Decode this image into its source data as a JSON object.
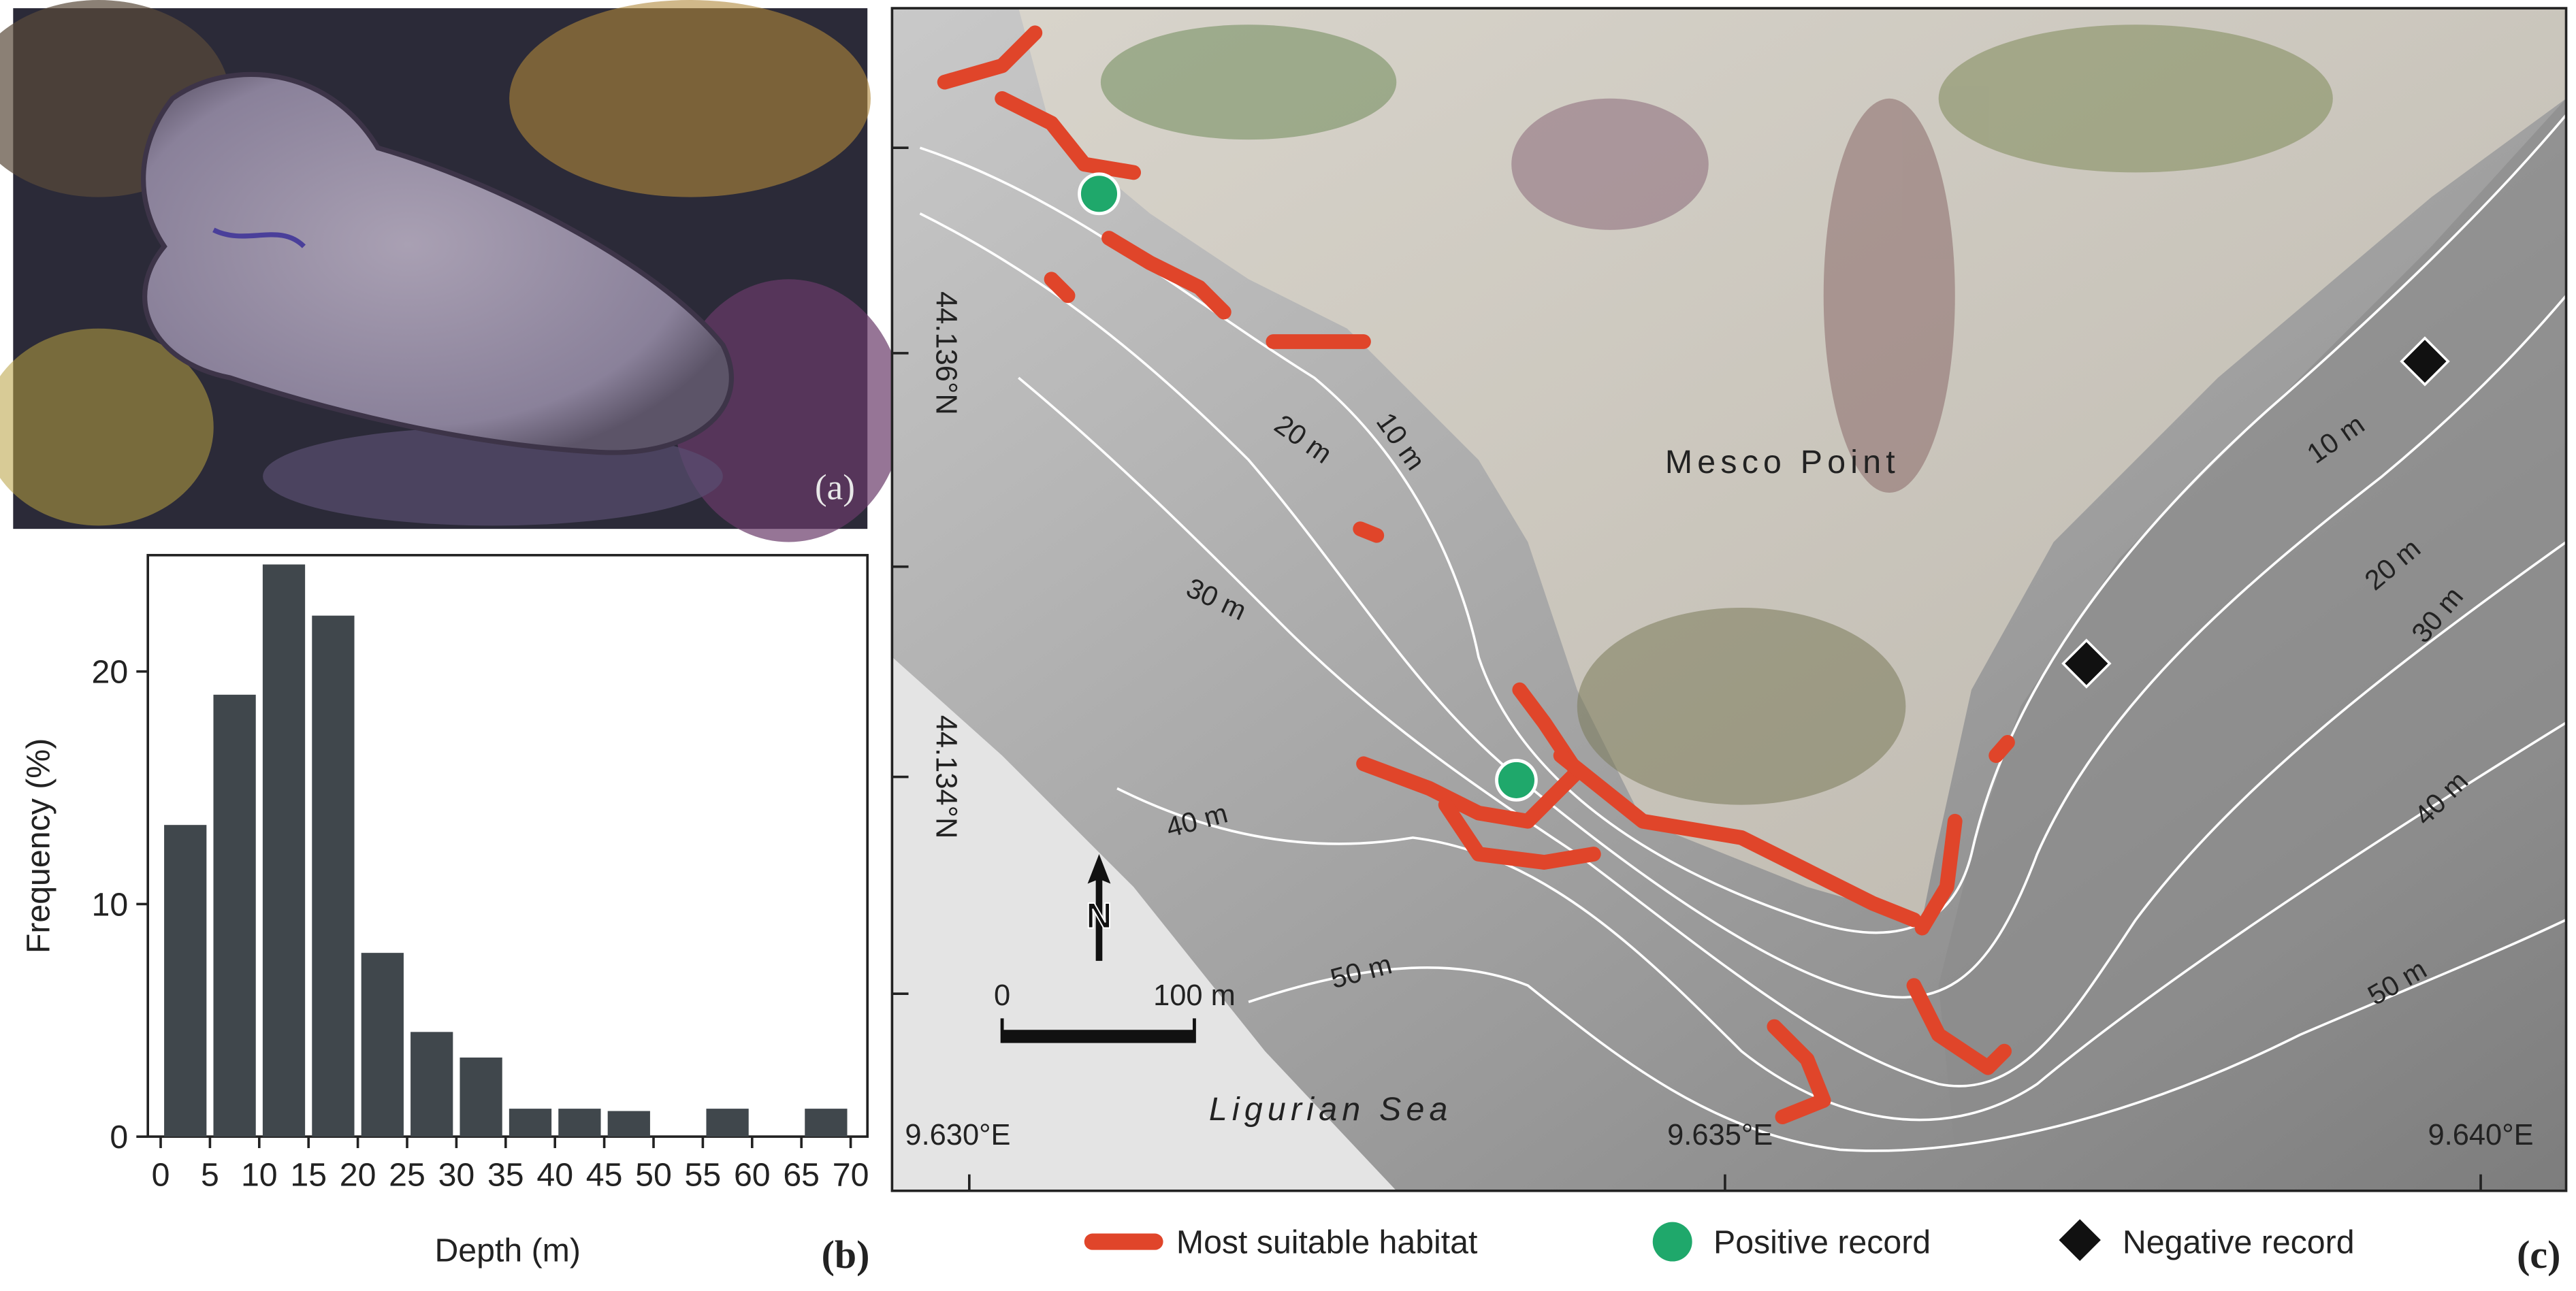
{
  "panel_labels": [
    "(a)",
    "(b)",
    "(c)"
  ],
  "chart_data": {
    "type": "histogram",
    "xlabel": "Depth (m)",
    "ylabel": "Frequency (%)",
    "bins": [
      0,
      5,
      10,
      15,
      20,
      25,
      30,
      35,
      40,
      45,
      50,
      55,
      60,
      65,
      70
    ],
    "values": [
      13.4,
      19,
      24.6,
      22.4,
      7.9,
      4.5,
      3.4,
      1.2,
      1.2,
      1.1,
      0,
      1.2,
      0,
      1.2
    ],
    "color": "#40474c",
    "xlim": [
      -1.3,
      71.7
    ],
    "ylim": [
      0,
      25
    ],
    "xticks": [
      0,
      5,
      10,
      15,
      20,
      25,
      30,
      35,
      40,
      45,
      50,
      55,
      60,
      65,
      70
    ],
    "yticks": [
      0,
      10,
      20
    ]
  },
  "map": {
    "place_labels": [
      "Mesco Point",
      "Ligurian Sea"
    ],
    "contour_labels": [
      "10 m",
      "20 m",
      "30 m",
      "40 m",
      "50 m"
    ],
    "latitude_labels": [
      "44.136°N",
      "44.134°N"
    ],
    "longitude_labels": [
      "9.630°E",
      "9.635°E",
      "9.640°E"
    ],
    "scale_bar": [
      "0",
      "100 m"
    ],
    "north": "N",
    "legend": [
      "Most suitable habitat",
      "Positive record",
      "Negative record"
    ]
  }
}
